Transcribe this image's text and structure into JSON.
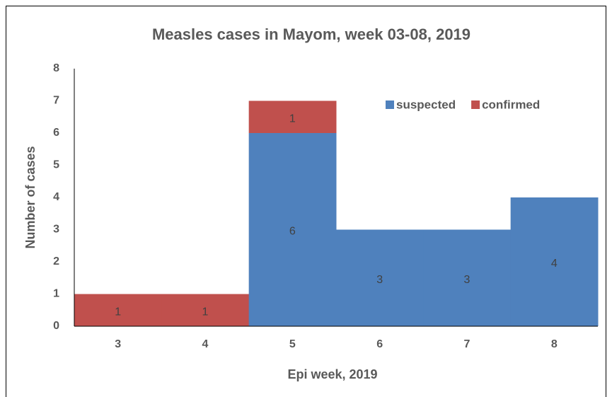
{
  "chart_data": {
    "type": "bar",
    "stacked": true,
    "title": "Measles cases in Mayom, week 03-08, 2019",
    "x_label": "Epi week, 2019",
    "y_label": "Number of cases",
    "categories": [
      "3",
      "4",
      "5",
      "6",
      "7",
      "8"
    ],
    "series": [
      {
        "name": "suspected",
        "color": "#4f81bd",
        "values": [
          null,
          null,
          6,
          3,
          3,
          4
        ]
      },
      {
        "name": "confirmed",
        "color": "#c0504d",
        "values": [
          1,
          1,
          1,
          null,
          null,
          null
        ]
      }
    ],
    "ylim": [
      0,
      8
    ],
    "yticks": [
      0,
      1,
      2,
      3,
      4,
      5,
      6,
      7,
      8
    ],
    "grid": false,
    "legend": "upper right"
  }
}
